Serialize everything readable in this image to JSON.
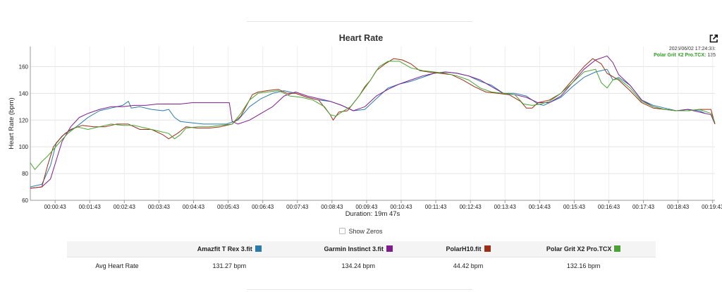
{
  "tooltip": {
    "timestamp": "2025/06/02 17:24:33:",
    "series": "Polar Grit X2 Pro.TCX:",
    "value": "135"
  },
  "controls": {
    "show_zeros_label": "Show Zeros",
    "export_icon": "export-arrow-icon"
  },
  "summary": {
    "row_label": "Avg Heart Rate",
    "columns": [
      {
        "name": "Amazfit T Rex 3.fit",
        "value": "131.27 bpm",
        "color": "#2a7bab"
      },
      {
        "name": "Garmin Instinct 3.fit",
        "value": "134.24 bpm",
        "color": "#7e1e8e"
      },
      {
        "name": "PolarH10.fit",
        "value": "44.42 bpm",
        "color": "#9b2e14"
      },
      {
        "name": "Polar Grit X2 Pro.TCX",
        "value": "132.16 bpm",
        "color": "#4aa332"
      }
    ]
  },
  "chart_data": {
    "type": "line",
    "title": "Heart Rate",
    "xlabel": "Duration: 19m 47s",
    "ylabel": "Heart Rate (bpm)",
    "ylim": [
      60,
      175
    ],
    "yticks": [
      60,
      80,
      100,
      120,
      140,
      160
    ],
    "xlim_seconds": [
      0,
      1187
    ],
    "grid": true,
    "legend": "none",
    "xticks": [
      {
        "t": 43,
        "label": "00:00:43"
      },
      {
        "t": 103,
        "label": "00:01:43"
      },
      {
        "t": 163,
        "label": "00:02:43"
      },
      {
        "t": 223,
        "label": "00:03:43"
      },
      {
        "t": 283,
        "label": "00:04:43"
      },
      {
        "t": 343,
        "label": "00:05:43"
      },
      {
        "t": 403,
        "label": "00:06:43"
      },
      {
        "t": 463,
        "label": "00:07:43"
      },
      {
        "t": 523,
        "label": "00:08:43"
      },
      {
        "t": 583,
        "label": "00:09:43"
      },
      {
        "t": 643,
        "label": "00:10:43"
      },
      {
        "t": 703,
        "label": "00:11:43"
      },
      {
        "t": 763,
        "label": "00:12:43"
      },
      {
        "t": 823,
        "label": "00:13:43"
      },
      {
        "t": 883,
        "label": "00:14:43"
      },
      {
        "t": 943,
        "label": "00:15:43"
      },
      {
        "t": 1003,
        "label": "00:16:43"
      },
      {
        "t": 1063,
        "label": "00:17:43"
      },
      {
        "t": 1123,
        "label": "00:18:43"
      },
      {
        "t": 1183,
        "label": "00:19:43"
      }
    ],
    "series": [
      {
        "name": "Amazfit T Rex 3.fit",
        "color": "#2a7bab",
        "points": [
          [
            0,
            70
          ],
          [
            20,
            72
          ],
          [
            35,
            86
          ],
          [
            45,
            103
          ],
          [
            60,
            110
          ],
          [
            80,
            115
          ],
          [
            100,
            122
          ],
          [
            120,
            127
          ],
          [
            140,
            129
          ],
          [
            160,
            131
          ],
          [
            170,
            134
          ],
          [
            175,
            129
          ],
          [
            190,
            130
          ],
          [
            210,
            128
          ],
          [
            230,
            127
          ],
          [
            240,
            128
          ],
          [
            250,
            122
          ],
          [
            260,
            119
          ],
          [
            280,
            118
          ],
          [
            300,
            117
          ],
          [
            320,
            117
          ],
          [
            340,
            117
          ],
          [
            360,
            120
          ],
          [
            380,
            130
          ],
          [
            400,
            136
          ],
          [
            420,
            140
          ],
          [
            440,
            142
          ],
          [
            460,
            140
          ],
          [
            480,
            137
          ],
          [
            500,
            135
          ],
          [
            520,
            134
          ],
          [
            540,
            131
          ],
          [
            560,
            127
          ],
          [
            580,
            128
          ],
          [
            600,
            136
          ],
          [
            620,
            144
          ],
          [
            640,
            147
          ],
          [
            660,
            149
          ],
          [
            680,
            152
          ],
          [
            700,
            155
          ],
          [
            720,
            156
          ],
          [
            740,
            155
          ],
          [
            760,
            153
          ],
          [
            780,
            149
          ],
          [
            800,
            146
          ],
          [
            820,
            140
          ],
          [
            840,
            140
          ],
          [
            860,
            138
          ],
          [
            880,
            132
          ],
          [
            890,
            131
          ],
          [
            900,
            133
          ],
          [
            920,
            137
          ],
          [
            940,
            145
          ],
          [
            960,
            152
          ],
          [
            980,
            156
          ],
          [
            1000,
            158
          ],
          [
            1010,
            150
          ],
          [
            1020,
            152
          ],
          [
            1040,
            146
          ],
          [
            1060,
            135
          ],
          [
            1080,
            131
          ],
          [
            1100,
            129
          ],
          [
            1120,
            127
          ],
          [
            1140,
            128
          ],
          [
            1160,
            127
          ],
          [
            1170,
            125
          ]
        ]
      },
      {
        "name": "Garmin Instinct 3.fit",
        "color": "#7e1e8e",
        "points": [
          [
            0,
            69
          ],
          [
            20,
            70
          ],
          [
            35,
            76
          ],
          [
            45,
            90
          ],
          [
            55,
            104
          ],
          [
            70,
            115
          ],
          [
            85,
            122
          ],
          [
            100,
            125
          ],
          [
            120,
            128
          ],
          [
            140,
            130
          ],
          [
            160,
            130
          ],
          [
            180,
            131
          ],
          [
            200,
            131
          ],
          [
            220,
            132
          ],
          [
            240,
            132
          ],
          [
            260,
            132
          ],
          [
            280,
            133
          ],
          [
            300,
            133
          ],
          [
            320,
            133
          ],
          [
            345,
            133
          ],
          [
            350,
            119
          ],
          [
            360,
            117
          ],
          [
            380,
            120
          ],
          [
            400,
            125
          ],
          [
            420,
            130
          ],
          [
            440,
            138
          ],
          [
            460,
            141
          ],
          [
            480,
            138
          ],
          [
            500,
            136
          ],
          [
            520,
            134
          ],
          [
            540,
            131
          ],
          [
            560,
            127
          ],
          [
            580,
            130
          ],
          [
            600,
            138
          ],
          [
            620,
            143
          ],
          [
            640,
            147
          ],
          [
            660,
            150
          ],
          [
            680,
            153
          ],
          [
            700,
            155
          ],
          [
            720,
            156
          ],
          [
            740,
            155
          ],
          [
            760,
            153
          ],
          [
            780,
            150
          ],
          [
            800,
            145
          ],
          [
            820,
            140
          ],
          [
            840,
            139
          ],
          [
            860,
            137
          ],
          [
            880,
            133
          ],
          [
            900,
            133
          ],
          [
            920,
            138
          ],
          [
            940,
            148
          ],
          [
            960,
            158
          ],
          [
            980,
            165
          ],
          [
            1000,
            168
          ],
          [
            1010,
            163
          ],
          [
            1020,
            154
          ],
          [
            1040,
            146
          ],
          [
            1060,
            135
          ],
          [
            1080,
            130
          ],
          [
            1100,
            128
          ],
          [
            1120,
            127
          ],
          [
            1140,
            128
          ],
          [
            1160,
            126
          ],
          [
            1180,
            124
          ],
          [
            1187,
            117
          ]
        ]
      },
      {
        "name": "PolarH10.fit",
        "color": "#9b2e14",
        "points": [
          [
            0,
            69
          ],
          [
            20,
            70
          ],
          [
            30,
            86
          ],
          [
            40,
            100
          ],
          [
            55,
            108
          ],
          [
            70,
            113
          ],
          [
            90,
            116
          ],
          [
            110,
            115
          ],
          [
            130,
            115
          ],
          [
            150,
            117
          ],
          [
            170,
            117
          ],
          [
            190,
            113
          ],
          [
            210,
            113
          ],
          [
            230,
            109
          ],
          [
            240,
            106
          ],
          [
            255,
            110
          ],
          [
            270,
            115
          ],
          [
            290,
            114
          ],
          [
            310,
            114
          ],
          [
            330,
            115
          ],
          [
            350,
            117
          ],
          [
            365,
            123
          ],
          [
            375,
            131
          ],
          [
            385,
            139
          ],
          [
            395,
            141
          ],
          [
            410,
            142
          ],
          [
            430,
            143
          ],
          [
            445,
            140
          ],
          [
            460,
            140
          ],
          [
            480,
            137
          ],
          [
            500,
            135
          ],
          [
            520,
            124
          ],
          [
            525,
            120
          ],
          [
            535,
            126
          ],
          [
            550,
            127
          ],
          [
            570,
            138
          ],
          [
            580,
            145
          ],
          [
            590,
            150
          ],
          [
            600,
            157
          ],
          [
            615,
            162
          ],
          [
            630,
            166
          ],
          [
            645,
            165
          ],
          [
            660,
            162
          ],
          [
            675,
            157
          ],
          [
            690,
            156
          ],
          [
            710,
            155
          ],
          [
            730,
            154
          ],
          [
            750,
            150
          ],
          [
            770,
            145
          ],
          [
            790,
            141
          ],
          [
            810,
            140
          ],
          [
            830,
            139
          ],
          [
            850,
            134
          ],
          [
            860,
            129
          ],
          [
            870,
            129
          ],
          [
            880,
            133
          ],
          [
            900,
            135
          ],
          [
            920,
            140
          ],
          [
            940,
            150
          ],
          [
            960,
            160
          ],
          [
            975,
            166
          ],
          [
            990,
            162
          ],
          [
            1000,
            155
          ],
          [
            1020,
            150
          ],
          [
            1040,
            142
          ],
          [
            1060,
            133
          ],
          [
            1080,
            129
          ],
          [
            1100,
            128
          ],
          [
            1120,
            127
          ],
          [
            1140,
            127
          ],
          [
            1160,
            128
          ],
          [
            1180,
            128
          ],
          [
            1187,
            117
          ]
        ]
      },
      {
        "name": "Polar Grit X2 Pro.TCX",
        "color": "#4aa332",
        "points": [
          [
            0,
            88
          ],
          [
            8,
            83
          ],
          [
            20,
            89
          ],
          [
            30,
            93
          ],
          [
            40,
            98
          ],
          [
            50,
            103
          ],
          [
            65,
            110
          ],
          [
            80,
            115
          ],
          [
            100,
            113
          ],
          [
            120,
            115
          ],
          [
            140,
            117
          ],
          [
            160,
            116
          ],
          [
            180,
            116
          ],
          [
            200,
            114
          ],
          [
            220,
            112
          ],
          [
            240,
            110
          ],
          [
            250,
            106
          ],
          [
            260,
            109
          ],
          [
            270,
            114
          ],
          [
            290,
            115
          ],
          [
            310,
            115
          ],
          [
            330,
            116
          ],
          [
            350,
            117
          ],
          [
            365,
            125
          ],
          [
            380,
            135
          ],
          [
            395,
            140
          ],
          [
            410,
            141
          ],
          [
            430,
            142
          ],
          [
            450,
            138
          ],
          [
            470,
            137
          ],
          [
            490,
            135
          ],
          [
            510,
            130
          ],
          [
            520,
            124
          ],
          [
            530,
            123
          ],
          [
            540,
            126
          ],
          [
            555,
            130
          ],
          [
            570,
            138
          ],
          [
            590,
            150
          ],
          [
            605,
            160
          ],
          [
            620,
            164
          ],
          [
            640,
            164
          ],
          [
            660,
            159
          ],
          [
            680,
            157
          ],
          [
            700,
            156
          ],
          [
            720,
            155
          ],
          [
            740,
            153
          ],
          [
            760,
            150
          ],
          [
            780,
            144
          ],
          [
            800,
            141
          ],
          [
            820,
            140
          ],
          [
            840,
            139
          ],
          [
            855,
            132
          ],
          [
            870,
            131
          ],
          [
            885,
            132
          ],
          [
            900,
            134
          ],
          [
            920,
            140
          ],
          [
            940,
            148
          ],
          [
            960,
            156
          ],
          [
            980,
            158
          ],
          [
            990,
            148
          ],
          [
            1000,
            144
          ],
          [
            1010,
            150
          ],
          [
            1020,
            151
          ],
          [
            1040,
            144
          ],
          [
            1060,
            134
          ],
          [
            1080,
            130
          ],
          [
            1100,
            128
          ],
          [
            1120,
            127
          ],
          [
            1140,
            127
          ],
          [
            1160,
            128
          ],
          [
            1180,
            125
          ],
          [
            1187,
            118
          ]
        ]
      }
    ]
  }
}
